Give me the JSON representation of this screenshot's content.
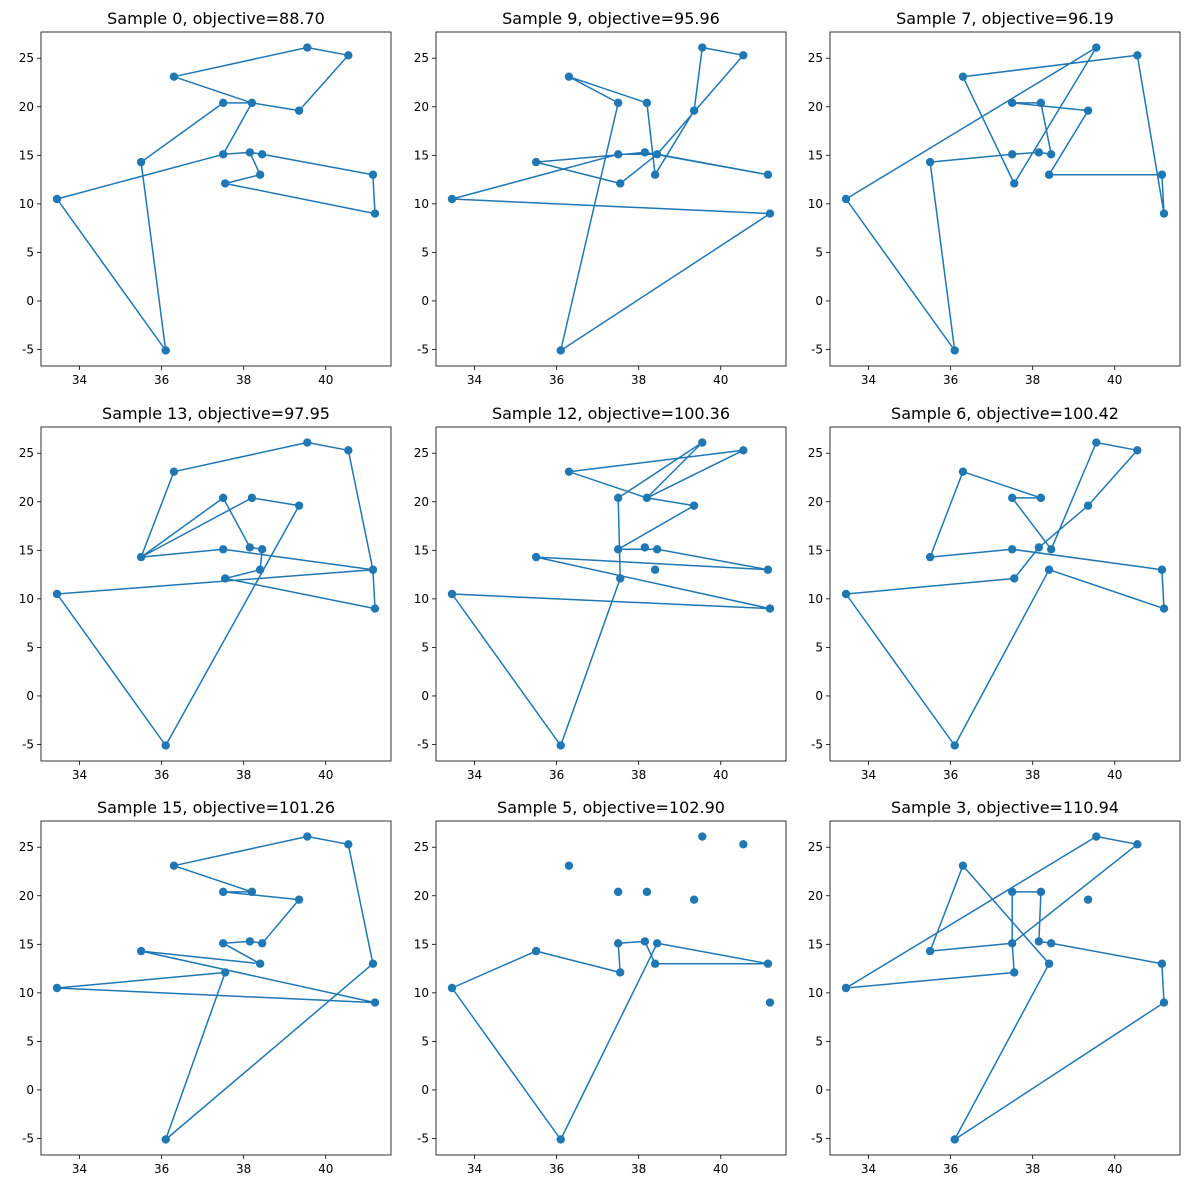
{
  "figure": {
    "cities": [
      {
        "id": "A",
        "x": 33.45,
        "y": 10.5
      },
      {
        "id": "B",
        "x": 36.1,
        "y": -5.1
      },
      {
        "id": "C",
        "x": 35.5,
        "y": 14.3
      },
      {
        "id": "D",
        "x": 36.3,
        "y": 23.1
      },
      {
        "id": "E",
        "x": 37.5,
        "y": 20.4
      },
      {
        "id": "F",
        "x": 38.2,
        "y": 20.4
      },
      {
        "id": "G",
        "x": 37.5,
        "y": 15.1
      },
      {
        "id": "H",
        "x": 38.15,
        "y": 15.3
      },
      {
        "id": "I",
        "x": 38.45,
        "y": 15.1
      },
      {
        "id": "J",
        "x": 37.55,
        "y": 12.1
      },
      {
        "id": "K",
        "x": 38.4,
        "y": 13.0
      },
      {
        "id": "L",
        "x": 39.35,
        "y": 19.6
      },
      {
        "id": "M",
        "x": 39.55,
        "y": 26.1
      },
      {
        "id": "N",
        "x": 40.55,
        "y": 25.3
      },
      {
        "id": "O",
        "x": 41.15,
        "y": 13.0
      },
      {
        "id": "P",
        "x": 41.2,
        "y": 9.0
      }
    ],
    "colors": {
      "line": "#1f77b4",
      "marker": "#1f77b4",
      "axis": "#000000"
    }
  },
  "chart_data": [
    {
      "type": "line",
      "title": "Sample 0, objective=88.70",
      "xlim": [
        33.06,
        41.59
      ],
      "ylim": [
        -6.7,
        27.7
      ],
      "xticks": [
        34,
        36,
        38,
        40
      ],
      "yticks": [
        -5,
        0,
        5,
        10,
        15,
        20,
        25
      ],
      "tour": [
        "A",
        "B",
        "C",
        "E",
        "F",
        "D",
        "M",
        "N",
        "L",
        "F",
        "G",
        "H",
        "K",
        "J",
        "P",
        "O",
        "I",
        "H",
        "G",
        "A"
      ]
    },
    {
      "type": "line",
      "title": "Sample 9, objective=95.96",
      "xlim": [
        33.06,
        41.59
      ],
      "ylim": [
        -6.7,
        27.7
      ],
      "xticks": [
        34,
        36,
        38,
        40
      ],
      "yticks": [
        -5,
        0,
        5,
        10,
        15,
        20,
        25
      ],
      "tour": [
        "A",
        "P",
        "B",
        "E",
        "D",
        "F",
        "K",
        "L",
        "M",
        "N",
        "I",
        "O",
        "H",
        "C",
        "J",
        "I",
        "G",
        "A"
      ]
    },
    {
      "type": "line",
      "title": "Sample 7, objective=96.19",
      "xlim": [
        33.06,
        41.59
      ],
      "ylim": [
        -6.7,
        27.7
      ],
      "xticks": [
        34,
        36,
        38,
        40
      ],
      "yticks": [
        -5,
        0,
        5,
        10,
        15,
        20,
        25
      ],
      "tour": [
        "A",
        "B",
        "C",
        "G",
        "H",
        "I",
        "F",
        "E",
        "L",
        "K",
        "O",
        "P",
        "N",
        "D",
        "J",
        "M",
        "A"
      ]
    },
    {
      "type": "line",
      "title": "Sample 13, objective=97.95",
      "xlim": [
        33.06,
        41.59
      ],
      "ylim": [
        -6.7,
        27.7
      ],
      "xticks": [
        34,
        36,
        38,
        40
      ],
      "yticks": [
        -5,
        0,
        5,
        10,
        15,
        20,
        25
      ],
      "tour": [
        "A",
        "B",
        "L",
        "F",
        "C",
        "D",
        "M",
        "N",
        "O",
        "G",
        "C",
        "E",
        "H",
        "I",
        "K",
        "J",
        "P",
        "O",
        "A"
      ]
    },
    {
      "type": "line",
      "title": "Sample 12, objective=100.36",
      "xlim": [
        33.06,
        41.59
      ],
      "ylim": [
        -6.7,
        27.7
      ],
      "xticks": [
        34,
        36,
        38,
        40
      ],
      "yticks": [
        -5,
        0,
        5,
        10,
        15,
        20,
        25
      ],
      "tour": [
        "A",
        "B",
        "J",
        "E",
        "M",
        "F",
        "D",
        "N",
        "F",
        "L",
        "G",
        "I",
        "O",
        "C",
        "P",
        "A"
      ]
    },
    {
      "type": "line",
      "title": "Sample 6, objective=100.42",
      "xlim": [
        33.06,
        41.59
      ],
      "ylim": [
        -6.7,
        27.7
      ],
      "xticks": [
        34,
        36,
        38,
        40
      ],
      "yticks": [
        -5,
        0,
        5,
        10,
        15,
        20,
        25
      ],
      "tour": [
        "A",
        "B",
        "K",
        "P",
        "O",
        "G",
        "C",
        "D",
        "F",
        "E",
        "I",
        "M",
        "N",
        "L",
        "H",
        "J",
        "A"
      ]
    },
    {
      "type": "line",
      "title": "Sample 15, objective=101.26",
      "xlim": [
        33.06,
        41.59
      ],
      "ylim": [
        -6.7,
        27.7
      ],
      "xticks": [
        34,
        36,
        38,
        40
      ],
      "yticks": [
        -5,
        0,
        5,
        10,
        15,
        20,
        25
      ],
      "tour": [
        "A",
        "P",
        "C",
        "K",
        "G",
        "H",
        "I",
        "L",
        "E",
        "F",
        "D",
        "M",
        "N",
        "O",
        "B",
        "J",
        "A"
      ]
    },
    {
      "type": "line",
      "title": "Sample 5, objective=102.90",
      "xlim": [
        33.06,
        41.59
      ],
      "ylim": [
        -6.7,
        27.7
      ],
      "xticks": [
        34,
        36,
        38,
        40
      ],
      "yticks": [
        -5,
        0,
        5,
        10,
        15,
        20,
        25
      ],
      "tour": [
        "A",
        "C",
        "J",
        "G",
        "H",
        "K",
        "O",
        "I",
        "B",
        "A"
      ]
    },
    {
      "type": "line",
      "title": "Sample 3, objective=110.94",
      "xlim": [
        33.06,
        41.59
      ],
      "ylim": [
        -6.7,
        27.7
      ],
      "xticks": [
        34,
        36,
        38,
        40
      ],
      "yticks": [
        -5,
        0,
        5,
        10,
        15,
        20,
        25
      ],
      "tour": [
        "A",
        "M",
        "N",
        "G",
        "C",
        "D",
        "K",
        "B",
        "P",
        "O",
        "I",
        "H",
        "F",
        "E",
        "G",
        "J",
        "A"
      ]
    }
  ]
}
